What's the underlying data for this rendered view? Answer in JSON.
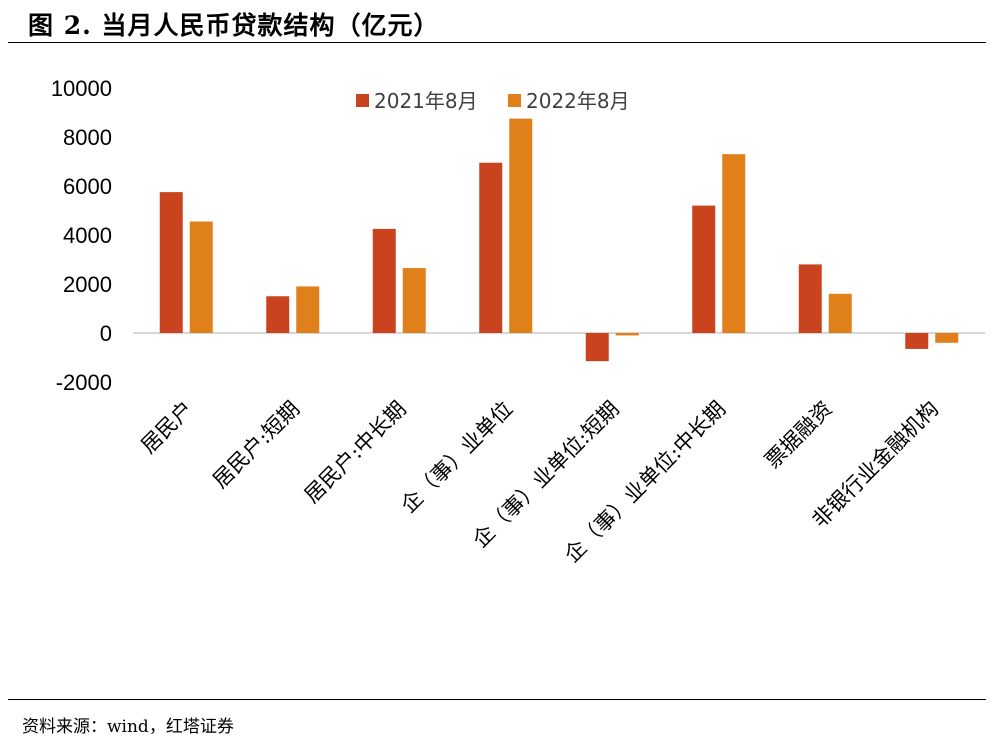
{
  "figure": {
    "title": "图 2. 当月人民币贷款结构（亿元）",
    "source": "资料来源：wind，红塔证券"
  },
  "colors": {
    "series_2021": "#C9431F",
    "series_2022": "#E0801A",
    "axis": "#BFBFBF"
  },
  "chart_data": {
    "type": "bar",
    "title": "当月人民币贷款结构（亿元）",
    "categories": [
      "居民户",
      "居民户:短期",
      "居民户:中长期",
      "企（事）业单位",
      "企（事）业单位:短期",
      "企（事）业单位:中长期",
      "票据融资",
      "非银行业金融机构"
    ],
    "series": [
      {
        "name": "2021年8月",
        "values": [
          5750,
          1500,
          4250,
          6950,
          -1150,
          5200,
          2800,
          -650
        ]
      },
      {
        "name": "2022年8月",
        "values": [
          4550,
          1900,
          2650,
          8750,
          -100,
          7300,
          1600,
          -400
        ]
      }
    ],
    "ylim": [
      -2000,
      10000
    ],
    "yticks": [
      10000,
      8000,
      6000,
      4000,
      2000,
      0,
      -2000
    ],
    "ytick_labels": [
      "10000",
      "8000",
      "6000",
      "4000",
      "2000",
      "0",
      "-2000"
    ],
    "xlabel": "",
    "ylabel": "",
    "legend_position": "top",
    "grid": false
  }
}
